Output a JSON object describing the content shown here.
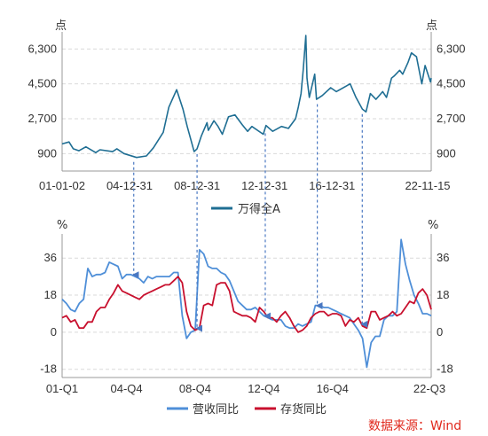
{
  "source_label": "数据来源：Wind",
  "colors": {
    "index": "#1f6e93",
    "revenue": "#4f8fd8",
    "inventory": "#c8102e",
    "arrow": "#4a78c2",
    "source": "#e0281c"
  },
  "chart_data": [
    {
      "type": "line",
      "unit_left": "点",
      "unit_right": "点",
      "yticks": [
        900,
        2700,
        4500,
        6300
      ],
      "ylim": [
        0,
        7000
      ],
      "xlim": [
        "2001-01-02",
        "2022-11-15"
      ],
      "x_tick_labels": [
        "01-01-02",
        "04-12-31",
        "08-12-31",
        "12-12-31",
        "16-12-31",
        "22-11-15"
      ],
      "x_tick_dates": [
        "2001-01-02",
        "2004-12-31",
        "2008-12-31",
        "2012-12-31",
        "2016-12-31",
        "2022-11-15"
      ],
      "grid": true,
      "legend_position": "bottom-center",
      "series": [
        {
          "name": "万得全A",
          "points": [
            [
              "2001-01-02",
              1400
            ],
            [
              "2001-06-01",
              1500
            ],
            [
              "2001-09-01",
              1150
            ],
            [
              "2002-01-01",
              1050
            ],
            [
              "2002-06-01",
              1250
            ],
            [
              "2002-12-31",
              950
            ],
            [
              "2003-04-01",
              1100
            ],
            [
              "2003-12-31",
              1000
            ],
            [
              "2004-04-01",
              1150
            ],
            [
              "2004-09-01",
              900
            ],
            [
              "2005-06-01",
              700
            ],
            [
              "2005-12-31",
              780
            ],
            [
              "2006-06-01",
              1200
            ],
            [
              "2006-12-31",
              2000
            ],
            [
              "2007-05-01",
              3300
            ],
            [
              "2007-10-16",
              4200
            ],
            [
              "2008-03-01",
              3200
            ],
            [
              "2008-06-01",
              2300
            ],
            [
              "2008-10-28",
              1000
            ],
            [
              "2008-12-31",
              1150
            ],
            [
              "2009-04-01",
              1800
            ],
            [
              "2009-08-04",
              2500
            ],
            [
              "2009-09-01",
              2100
            ],
            [
              "2009-12-31",
              2600
            ],
            [
              "2010-04-01",
              2300
            ],
            [
              "2010-07-01",
              1900
            ],
            [
              "2010-11-10",
              2800
            ],
            [
              "2011-04-01",
              2900
            ],
            [
              "2011-09-01",
              2400
            ],
            [
              "2011-12-31",
              2050
            ],
            [
              "2012-04-01",
              2300
            ],
            [
              "2012-12-03",
              1900
            ],
            [
              "2013-02-01",
              2350
            ],
            [
              "2013-06-25",
              2050
            ],
            [
              "2013-12-31",
              2300
            ],
            [
              "2014-06-01",
              2200
            ],
            [
              "2014-11-01",
              2700
            ],
            [
              "2014-12-31",
              3300
            ],
            [
              "2015-03-01",
              4000
            ],
            [
              "2015-04-15",
              5200
            ],
            [
              "2015-06-12",
              7000
            ],
            [
              "2015-07-08",
              4800
            ],
            [
              "2015-08-26",
              3800
            ],
            [
              "2015-12-22",
              5000
            ],
            [
              "2016-01-28",
              3700
            ],
            [
              "2016-06-01",
              3900
            ],
            [
              "2016-11-30",
              4300
            ],
            [
              "2017-04-01",
              4100
            ],
            [
              "2017-11-14",
              4400
            ],
            [
              "2018-01-25",
              4500
            ],
            [
              "2018-06-01",
              3800
            ],
            [
              "2018-10-18",
              3200
            ],
            [
              "2019-01-03",
              3050
            ],
            [
              "2019-04-08",
              4000
            ],
            [
              "2019-08-06",
              3700
            ],
            [
              "2019-12-31",
              4100
            ],
            [
              "2020-03-23",
              3800
            ],
            [
              "2020-07-10",
              4800
            ],
            [
              "2020-09-01",
              4900
            ],
            [
              "2020-12-31",
              5200
            ],
            [
              "2021-03-09",
              5000
            ],
            [
              "2021-06-30",
              5600
            ],
            [
              "2021-09-13",
              6100
            ],
            [
              "2021-12-31",
              5900
            ],
            [
              "2022-04-26",
              4500
            ],
            [
              "2022-07-05",
              5450
            ],
            [
              "2022-10-31",
              4600
            ],
            [
              "2022-11-15",
              4800
            ]
          ]
        }
      ]
    },
    {
      "type": "line",
      "unit_left": "%",
      "unit_right": "%",
      "yticks": [
        -18,
        0,
        18,
        36
      ],
      "ylim": [
        -22,
        46
      ],
      "categories": [
        "01-Q1",
        "01-Q2",
        "01-Q3",
        "01-Q4",
        "02-Q1",
        "02-Q2",
        "02-Q3",
        "02-Q4",
        "03-Q1",
        "03-Q2",
        "03-Q3",
        "03-Q4",
        "04-Q1",
        "04-Q2",
        "04-Q3",
        "04-Q4",
        "05-Q1",
        "05-Q2",
        "05-Q3",
        "05-Q4",
        "06-Q1",
        "06-Q2",
        "06-Q3",
        "06-Q4",
        "07-Q1",
        "07-Q2",
        "07-Q3",
        "07-Q4",
        "08-Q1",
        "08-Q2",
        "08-Q3",
        "08-Q4",
        "09-Q1",
        "09-Q2",
        "09-Q3",
        "09-Q4",
        "10-Q1",
        "10-Q2",
        "10-Q3",
        "10-Q4",
        "11-Q1",
        "11-Q2",
        "11-Q3",
        "11-Q4",
        "12-Q1",
        "12-Q2",
        "12-Q3",
        "12-Q4",
        "13-Q1",
        "13-Q2",
        "13-Q3",
        "13-Q4",
        "14-Q1",
        "14-Q2",
        "14-Q3",
        "14-Q4",
        "15-Q1",
        "15-Q2",
        "15-Q3",
        "15-Q4",
        "16-Q1",
        "16-Q2",
        "16-Q3",
        "16-Q4",
        "17-Q1",
        "17-Q2",
        "17-Q3",
        "17-Q4",
        "18-Q1",
        "18-Q2",
        "18-Q3",
        "18-Q4",
        "19-Q1",
        "19-Q2",
        "19-Q3",
        "19-Q4",
        "20-Q1",
        "20-Q2",
        "20-Q3",
        "20-Q4",
        "21-Q1",
        "21-Q2",
        "21-Q3",
        "21-Q4",
        "22-Q1",
        "22-Q2",
        "22-Q3"
      ],
      "x_tick_labels": [
        "01-Q1",
        "04-Q4",
        "08-Q4",
        "12-Q4",
        "16-Q4",
        "22-Q3"
      ],
      "grid": true,
      "legend_position": "bottom-center",
      "series": [
        {
          "name": "营收同比",
          "values": [
            16,
            14,
            11,
            10,
            14,
            16,
            31,
            27,
            28,
            28,
            29,
            34,
            33,
            32,
            26,
            28,
            28,
            27,
            26,
            24,
            27,
            26,
            27,
            27,
            27,
            27,
            29,
            29,
            8,
            -3,
            0,
            1,
            40,
            38,
            32,
            31,
            31,
            29,
            28,
            25,
            20,
            15,
            13,
            11,
            11,
            12,
            10,
            8,
            7,
            6,
            6,
            6,
            3,
            2,
            2,
            4,
            3,
            4,
            5,
            13,
            13,
            12,
            12,
            11,
            10,
            9,
            8,
            7,
            4,
            1,
            -3,
            -17,
            -5,
            -2,
            -2,
            6,
            8,
            8,
            10,
            45,
            33,
            25,
            18,
            14,
            9,
            9,
            8
          ]
        },
        {
          "name": "存货同比",
          "values": [
            7,
            8,
            5,
            6,
            2,
            2,
            5,
            5,
            10,
            12,
            12,
            16,
            19,
            23,
            20,
            19,
            18,
            17,
            16,
            18,
            19,
            20,
            21,
            22,
            23,
            23,
            25,
            27,
            24,
            10,
            3,
            1,
            2,
            13,
            14,
            13,
            23,
            24,
            24,
            20,
            10,
            9,
            8,
            8,
            7,
            5,
            12,
            10,
            7,
            7,
            5,
            8,
            10,
            7,
            3,
            0,
            1,
            3,
            7,
            9,
            10,
            10,
            8,
            9,
            9,
            8,
            3,
            6,
            5,
            7,
            3,
            2,
            10,
            10,
            6,
            7,
            8,
            10,
            8,
            9,
            12,
            15,
            14,
            19,
            21,
            18,
            11
          ]
        }
      ],
      "annotations": [
        {
          "date": "2005-04-01",
          "quarter": "05-Q2"
        },
        {
          "date": "2008-12-31",
          "quarter": "08-Q4"
        },
        {
          "date": "2013-01-15",
          "quarter": "13-Q1"
        },
        {
          "date": "2016-02-15",
          "quarter": "16-Q2"
        },
        {
          "date": "2018-10-15",
          "quarter": "18-Q3"
        }
      ]
    }
  ]
}
